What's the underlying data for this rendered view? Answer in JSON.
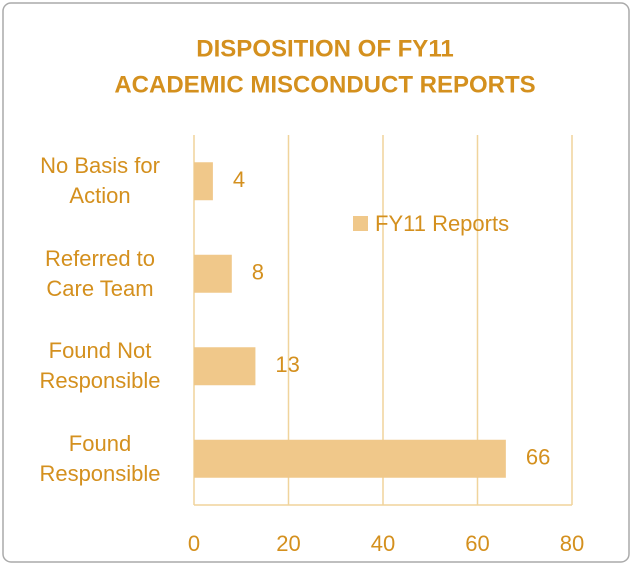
{
  "chart_data": {
    "type": "bar",
    "orientation": "horizontal",
    "title": [
      "DISPOSITION OF FY11",
      "ACADEMIC MISCONDUCT REPORTS"
    ],
    "categories": [
      "No Basis for Action",
      "Referred to Care Team",
      "Found Not Responsible",
      "Found Responsible"
    ],
    "series": [
      {
        "name": "FY11 Reports",
        "color": "#f0c88a",
        "values": [
          4,
          8,
          13,
          66
        ]
      }
    ],
    "xlim": [
      0,
      80
    ],
    "xticks": [
      0,
      20,
      40,
      60,
      80
    ],
    "grid": true,
    "legend": "inside"
  }
}
